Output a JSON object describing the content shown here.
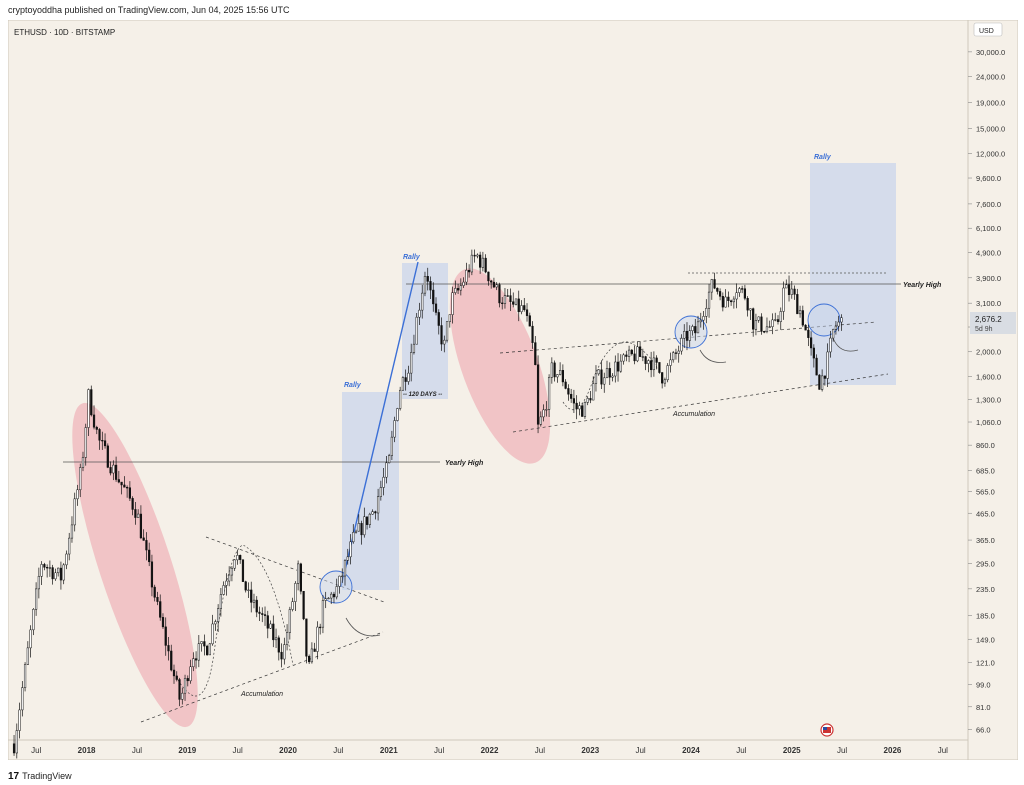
{
  "header": {
    "published": "cryptoyoddha published on TradingView.com, Jun 04, 2025 15:56 UTC"
  },
  "symbol": {
    "label": "ETHUSD · 10D · BITSTAMP"
  },
  "footer": {
    "logo": "17",
    "brand": "TradingView"
  },
  "colors": {
    "bg": "#f5f0e8",
    "up": "#ffffff",
    "down": "#111111",
    "rally": "#c9d6ec",
    "red": "#efb6bb",
    "blue": "#3b6fd6"
  },
  "chart_data": {
    "type": "candlestick",
    "currency": "USD",
    "yscale": "log",
    "ylim": [
      60,
      40000
    ],
    "y_ticks": [
      66,
      81,
      99,
      121,
      149,
      185,
      235,
      295,
      365,
      465,
      565,
      685,
      860,
      1060,
      1300,
      1600,
      2000,
      2500,
      3100,
      3900,
      4900,
      6100,
      7600,
      9600,
      12000,
      15000,
      19000,
      24000,
      30000
    ],
    "y_tick_labels": [
      "66.0",
      "81.0",
      "99.0",
      "121.0",
      "149.0",
      "185.0",
      "235.0",
      "295.0",
      "365.0",
      "465.0",
      "565.0",
      "685.0",
      "860.0",
      "1,060.0",
      "1,300.0",
      "1,600.0",
      "2,000.0",
      "2,500.0",
      "3,100.0",
      "3,900.0",
      "4,900.0",
      "6,100.0",
      "7,600.0",
      "9,600.0",
      "12,000.0",
      "15,000.0",
      "19,000.0",
      "24,000.0",
      "30,000.0"
    ],
    "x_ticks": [
      {
        "label": "Jul",
        "t": 2017.5
      },
      {
        "label": "2018",
        "t": 2018.0
      },
      {
        "label": "Jul",
        "t": 2018.5
      },
      {
        "label": "2019",
        "t": 2019.0
      },
      {
        "label": "Jul",
        "t": 2019.5
      },
      {
        "label": "2020",
        "t": 2020.0
      },
      {
        "label": "Jul",
        "t": 2020.5
      },
      {
        "label": "2021",
        "t": 2021.0
      },
      {
        "label": "Jul",
        "t": 2021.5
      },
      {
        "label": "2022",
        "t": 2022.0
      },
      {
        "label": "Jul",
        "t": 2022.5
      },
      {
        "label": "2023",
        "t": 2023.0
      },
      {
        "label": "Jul",
        "t": 2023.5
      },
      {
        "label": "2024",
        "t": 2024.0
      },
      {
        "label": "Jul",
        "t": 2024.5
      },
      {
        "label": "2025",
        "t": 2025.0
      },
      {
        "label": "Jul",
        "t": 2025.5
      },
      {
        "label": "2026",
        "t": 2026.0
      },
      {
        "label": "Jul",
        "t": 2026.5
      }
    ],
    "xlim": [
      2017.22,
      2026.75
    ],
    "current_price": {
      "value": 2676.2,
      "label": "2,676.2",
      "countdown": "5d 9h"
    },
    "anchors": [
      [
        2017.28,
        58
      ],
      [
        2017.55,
        300
      ],
      [
        2017.75,
        260
      ],
      [
        2017.95,
        700
      ],
      [
        2018.02,
        1350
      ],
      [
        2018.12,
        900
      ],
      [
        2018.3,
        650
      ],
      [
        2018.5,
        470
      ],
      [
        2018.7,
        200
      ],
      [
        2018.93,
        85
      ],
      [
        2019.05,
        130
      ],
      [
        2019.2,
        140
      ],
      [
        2019.35,
        240
      ],
      [
        2019.48,
        330
      ],
      [
        2019.6,
        220
      ],
      [
        2019.75,
        180
      ],
      [
        2019.95,
        130
      ],
      [
        2020.1,
        280
      ],
      [
        2020.2,
        110
      ],
      [
        2020.35,
        200
      ],
      [
        2020.5,
        240
      ],
      [
        2020.65,
        370
      ],
      [
        2020.85,
        480
      ],
      [
        2021.0,
        730
      ],
      [
        2021.1,
        1400
      ],
      [
        2021.2,
        1800
      ],
      [
        2021.3,
        3000
      ],
      [
        2021.37,
        4300
      ],
      [
        2021.45,
        2800
      ],
      [
        2021.55,
        2100
      ],
      [
        2021.62,
        3200
      ],
      [
        2021.7,
        3500
      ],
      [
        2021.8,
        4300
      ],
      [
        2021.87,
        4800
      ],
      [
        2021.95,
        4300
      ],
      [
        2022.1,
        3300
      ],
      [
        2022.25,
        3000
      ],
      [
        2022.35,
        2900
      ],
      [
        2022.45,
        1900
      ],
      [
        2022.48,
        1000
      ],
      [
        2022.55,
        1200
      ],
      [
        2022.62,
        1700
      ],
      [
        2022.72,
        1600
      ],
      [
        2022.85,
        1200
      ],
      [
        2022.95,
        1200
      ],
      [
        2023.05,
        1550
      ],
      [
        2023.15,
        1650
      ],
      [
        2023.3,
        1800
      ],
      [
        2023.45,
        1950
      ],
      [
        2023.6,
        1850
      ],
      [
        2023.72,
        1600
      ],
      [
        2023.85,
        1950
      ],
      [
        2023.95,
        2300
      ],
      [
        2024.05,
        2400
      ],
      [
        2024.15,
        3200
      ],
      [
        2024.22,
        3700
      ],
      [
        2024.35,
        3100
      ],
      [
        2024.45,
        3600
      ],
      [
        2024.55,
        3300
      ],
      [
        2024.62,
        2600
      ],
      [
        2024.75,
        2500
      ],
      [
        2024.85,
        2500
      ],
      [
        2024.92,
        3500
      ],
      [
        2025.0,
        3400
      ],
      [
        2025.1,
        2800
      ],
      [
        2025.2,
        1900
      ],
      [
        2025.28,
        1500
      ],
      [
        2025.35,
        1800
      ],
      [
        2025.42,
        2500
      ],
      [
        2025.48,
        2600
      ],
      [
        2025.52,
        2676
      ]
    ],
    "annotations": {
      "rally": "Rally",
      "yearly_high": "Yearly High",
      "accumulation": "Accumulation",
      "days": "-- 120 DAYS --"
    }
  }
}
